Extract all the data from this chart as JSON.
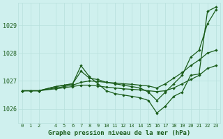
{
  "background_color": "#cff0ee",
  "grid_color": "#b8e0dc",
  "line_color": "#1a5c1a",
  "xlabel": "Graphe pression niveau de la mer (hPa)",
  "x_values": [
    0,
    1,
    2,
    4,
    5,
    6,
    7,
    8,
    9,
    10,
    11,
    12,
    13,
    14,
    15,
    16,
    17,
    18,
    19,
    20,
    21,
    22,
    23
  ],
  "ylim": [
    1025.5,
    1029.8
  ],
  "yticks": [
    1026,
    1027,
    1028,
    1029
  ],
  "line1": [
    1026.65,
    1026.65,
    1026.65,
    1026.8,
    1026.85,
    1026.9,
    1027.55,
    1027.15,
    1026.9,
    1026.65,
    1026.55,
    1026.5,
    1026.45,
    1026.4,
    1026.3,
    1025.85,
    1026.1,
    1026.45,
    1026.6,
    1027.2,
    1027.25,
    1029.5,
    1029.65
  ],
  "line2": [
    1026.65,
    1026.65,
    1026.65,
    1026.8,
    1026.85,
    1026.9,
    1027.35,
    1027.1,
    1027.05,
    1026.95,
    1026.9,
    1026.85,
    1026.8,
    1026.75,
    1026.6,
    1026.3,
    1026.6,
    1026.9,
    1027.2,
    1027.85,
    1028.1,
    1029.05,
    1029.55
  ],
  "line3": [
    1026.65,
    1026.65,
    1026.65,
    1026.75,
    1026.8,
    1026.85,
    1026.95,
    1027.0,
    1026.98,
    1026.95,
    1026.93,
    1026.9,
    1026.88,
    1026.85,
    1026.82,
    1026.75,
    1026.9,
    1027.1,
    1027.3,
    1027.55,
    1027.75,
    1028.0,
    1028.1
  ],
  "line4": [
    1026.65,
    1026.65,
    1026.65,
    1026.72,
    1026.76,
    1026.8,
    1026.85,
    1026.85,
    1026.82,
    1026.78,
    1026.75,
    1026.72,
    1026.7,
    1026.68,
    1026.65,
    1026.62,
    1026.65,
    1026.75,
    1026.9,
    1027.05,
    1027.2,
    1027.45,
    1027.55
  ]
}
